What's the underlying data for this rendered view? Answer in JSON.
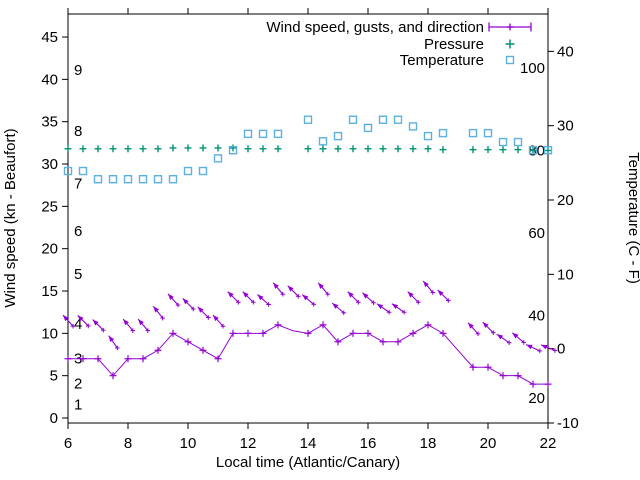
{
  "legend": {
    "entries": [
      {
        "label": "Wind speed, gusts, and direction",
        "series": "wind"
      },
      {
        "label": "Pressure",
        "series": "pressure"
      },
      {
        "label": "Temperature",
        "series": "temperature"
      }
    ]
  },
  "colors": {
    "wind": "#9400d3",
    "pressure": "#009473",
    "temperature": "#5cb0e2",
    "axis": "#000000"
  },
  "chart_data": {
    "type": "line",
    "title": "",
    "xlabel": "Local time (Atlantic/Canary)",
    "ylabel_left": "Wind speed (kn - Beaufort)",
    "ylabel_right": "Temperature (C - F)",
    "xlim": [
      6,
      22
    ],
    "x_ticks": [
      6,
      8,
      10,
      12,
      14,
      16,
      18,
      20,
      22
    ],
    "ylim_left_kn": [
      -0.6,
      47.8
    ],
    "y_ticks_left_kn": [
      0,
      5,
      10,
      15,
      20,
      25,
      30,
      35,
      40,
      45
    ],
    "ylim_right_c": [
      -10,
      45
    ],
    "y_ticks_right_c": [
      -10,
      0,
      10,
      20,
      30,
      40
    ],
    "beaufort_scale_labels": [
      {
        "beaufort": "1",
        "kn": 1.6
      },
      {
        "beaufort": "2",
        "kn": 4.1
      },
      {
        "beaufort": "3",
        "kn": 7.0
      },
      {
        "beaufort": "4",
        "kn": 11.1
      },
      {
        "beaufort": "5",
        "kn": 17.0
      },
      {
        "beaufort": "6",
        "kn": 22.1
      },
      {
        "beaufort": "7",
        "kn": 27.7
      },
      {
        "beaufort": "8",
        "kn": 33.9
      },
      {
        "beaufort": "9",
        "kn": 41.1
      }
    ],
    "fahrenheit_scale_labels": [
      "20",
      "40",
      "60",
      "80",
      "100"
    ],
    "grid": false,
    "legend_position": "top-right-inside",
    "series": [
      {
        "name": "Wind speed",
        "type": "line",
        "marker": "plus",
        "color_key": "wind",
        "x": [
          6,
          6.5,
          7,
          7.5,
          8,
          8.5,
          9,
          9.5,
          10,
          10.5,
          11,
          11.5,
          12,
          12.5,
          13,
          13.5,
          14,
          14.5,
          15,
          15.5,
          16,
          16.5,
          17,
          17.5,
          18,
          18.5,
          19,
          19.5,
          20,
          20.5,
          21,
          21.5,
          22
        ],
        "y_kn": [
          7,
          7,
          7,
          5,
          7,
          7,
          8,
          10,
          9,
          8,
          7,
          10,
          10,
          10,
          11,
          10.3,
          10,
          11,
          9,
          10,
          10,
          9,
          9,
          10,
          11,
          10,
          8,
          6,
          6,
          5,
          5,
          4,
          4
        ],
        "marker_skip_x": [
          13.5,
          19
        ]
      },
      {
        "name": "Gusts and direction",
        "type": "vector",
        "marker": "arrow-up-left",
        "color_key": "wind",
        "x": [
          6,
          6.5,
          7,
          7.5,
          8,
          8.5,
          9,
          9.5,
          10,
          10.5,
          11,
          11.5,
          12,
          12.5,
          13,
          13.5,
          14,
          14.5,
          15,
          15.5,
          16,
          16.5,
          17,
          17.5,
          18,
          18.5,
          19.5,
          20,
          20.5,
          21,
          21.5,
          22
        ],
        "y_kn": [
          11.5,
          11.5,
          11,
          9,
          11,
          11,
          12.5,
          14,
          13.5,
          12.5,
          11.5,
          14.3,
          14.3,
          14,
          15.3,
          15,
          14,
          15.3,
          13,
          14.3,
          14.2,
          13,
          13,
          14.3,
          15.5,
          14.5,
          10.6,
          10.7,
          9.4,
          9.5,
          8.3,
          8.3
        ],
        "angle_deg_up_from_left": [
          48,
          45,
          45,
          55,
          50,
          50,
          52,
          48,
          45,
          45,
          48,
          45,
          45,
          42,
          50,
          45,
          40,
          50,
          40,
          45,
          42,
          35,
          35,
          45,
          50,
          45,
          48,
          45,
          35,
          40,
          25,
          22
        ]
      },
      {
        "name": "Pressure",
        "type": "scatter",
        "marker": "plus",
        "color_key": "pressure",
        "note": "pressure axis scale not shown in image; values read against left kn axis",
        "x": [
          6,
          6.5,
          7,
          7.5,
          8,
          8.5,
          9,
          9.5,
          10,
          10.5,
          11,
          11.5,
          12,
          12.5,
          13,
          14,
          14.5,
          15,
          15.5,
          16,
          16.5,
          17,
          17.5,
          18,
          18.5,
          19.5,
          20,
          20.5,
          21,
          21.5,
          22
        ],
        "y_kn_equivalent": [
          31.8,
          31.8,
          31.8,
          31.8,
          31.8,
          31.8,
          31.8,
          31.9,
          31.9,
          31.9,
          31.9,
          31.9,
          31.8,
          31.8,
          31.8,
          31.8,
          31.8,
          31.8,
          31.8,
          31.8,
          31.8,
          31.8,
          31.8,
          31.8,
          31.7,
          31.7,
          31.7,
          31.7,
          31.7,
          31.6,
          31.6
        ]
      },
      {
        "name": "Temperature",
        "type": "scatter",
        "marker": "open-square",
        "color_key": "temperature",
        "x": [
          6,
          6.5,
          7,
          7.5,
          8,
          8.5,
          9,
          9.5,
          10,
          10.5,
          11,
          11.5,
          12,
          12.5,
          13,
          14,
          14.5,
          15,
          15.5,
          16,
          16.5,
          17,
          17.5,
          18,
          18.5,
          19.5,
          20,
          20.5,
          21,
          21.5,
          22
        ],
        "y_c": [
          23.9,
          23.9,
          22.8,
          22.8,
          22.8,
          22.8,
          22.8,
          22.8,
          23.9,
          23.9,
          25.6,
          26.7,
          28.9,
          28.9,
          28.9,
          30.8,
          27.9,
          28.6,
          30.8,
          29.7,
          30.8,
          30.8,
          29.9,
          28.6,
          29,
          29,
          29,
          27.8,
          27.8,
          26.7,
          26.7
        ]
      }
    ],
    "data_gaps_x": [
      13.5,
      19
    ]
  }
}
